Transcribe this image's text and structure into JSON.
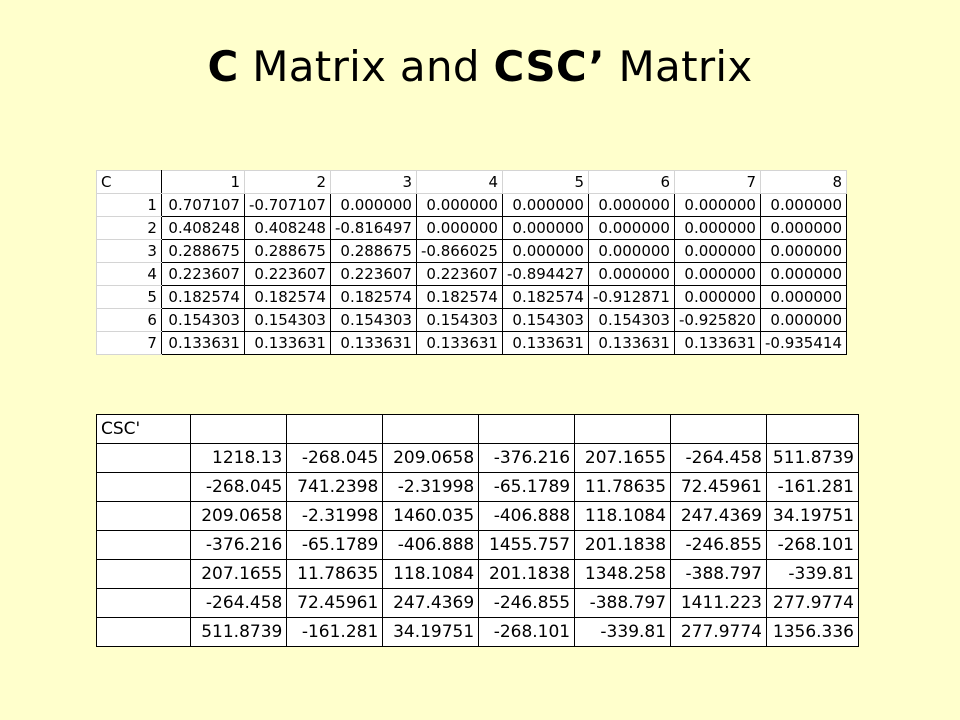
{
  "slide": {
    "title_part1": "C",
    "title_part2": " Matrix and ",
    "title_part3": "CSC’",
    "title_part4": " Matrix"
  },
  "c_matrix": {
    "corner": "C",
    "col_headers": [
      "1",
      "2",
      "3",
      "4",
      "5",
      "6",
      "7",
      "8"
    ],
    "rows": [
      {
        "label": "1",
        "cells": [
          "0.707107",
          "-0.707107",
          "0.000000",
          "0.000000",
          "0.000000",
          "0.000000",
          "0.000000",
          "0.000000"
        ]
      },
      {
        "label": "2",
        "cells": [
          "0.408248",
          "0.408248",
          "-0.816497",
          "0.000000",
          "0.000000",
          "0.000000",
          "0.000000",
          "0.000000"
        ]
      },
      {
        "label": "3",
        "cells": [
          "0.288675",
          "0.288675",
          "0.288675",
          "-0.866025",
          "0.000000",
          "0.000000",
          "0.000000",
          "0.000000"
        ]
      },
      {
        "label": "4",
        "cells": [
          "0.223607",
          "0.223607",
          "0.223607",
          "0.223607",
          "-0.894427",
          "0.000000",
          "0.000000",
          "0.000000"
        ]
      },
      {
        "label": "5",
        "cells": [
          "0.182574",
          "0.182574",
          "0.182574",
          "0.182574",
          "0.182574",
          "-0.912871",
          "0.000000",
          "0.000000"
        ]
      },
      {
        "label": "6",
        "cells": [
          "0.154303",
          "0.154303",
          "0.154303",
          "0.154303",
          "0.154303",
          "0.154303",
          "-0.925820",
          "0.000000"
        ]
      },
      {
        "label": "7",
        "cells": [
          "0.133631",
          "0.133631",
          "0.133631",
          "0.133631",
          "0.133631",
          "0.133631",
          "0.133631",
          "-0.935414"
        ]
      }
    ]
  },
  "csc_matrix": {
    "corner": "CSC'",
    "rows": [
      [
        "1218.13",
        "-268.045",
        "209.0658",
        "-376.216",
        "207.1655",
        "-264.458",
        "511.8739"
      ],
      [
        "-268.045",
        "741.2398",
        "-2.31998",
        "-65.1789",
        "11.78635",
        "72.45961",
        "-161.281"
      ],
      [
        "209.0658",
        "-2.31998",
        "1460.035",
        "-406.888",
        "118.1084",
        "247.4369",
        "34.19751"
      ],
      [
        "-376.216",
        "-65.1789",
        "-406.888",
        "1455.757",
        "201.1838",
        "-246.855",
        "-268.101"
      ],
      [
        "207.1655",
        "11.78635",
        "118.1084",
        "201.1838",
        "1348.258",
        "-388.797",
        "-339.81"
      ],
      [
        "-264.458",
        "72.45961",
        "247.4369",
        "-246.855",
        "-388.797",
        "1411.223",
        "277.9774"
      ],
      [
        "511.8739",
        "-161.281",
        "34.19751",
        "-268.101",
        "-339.81",
        "277.9774",
        "1356.336"
      ]
    ]
  }
}
